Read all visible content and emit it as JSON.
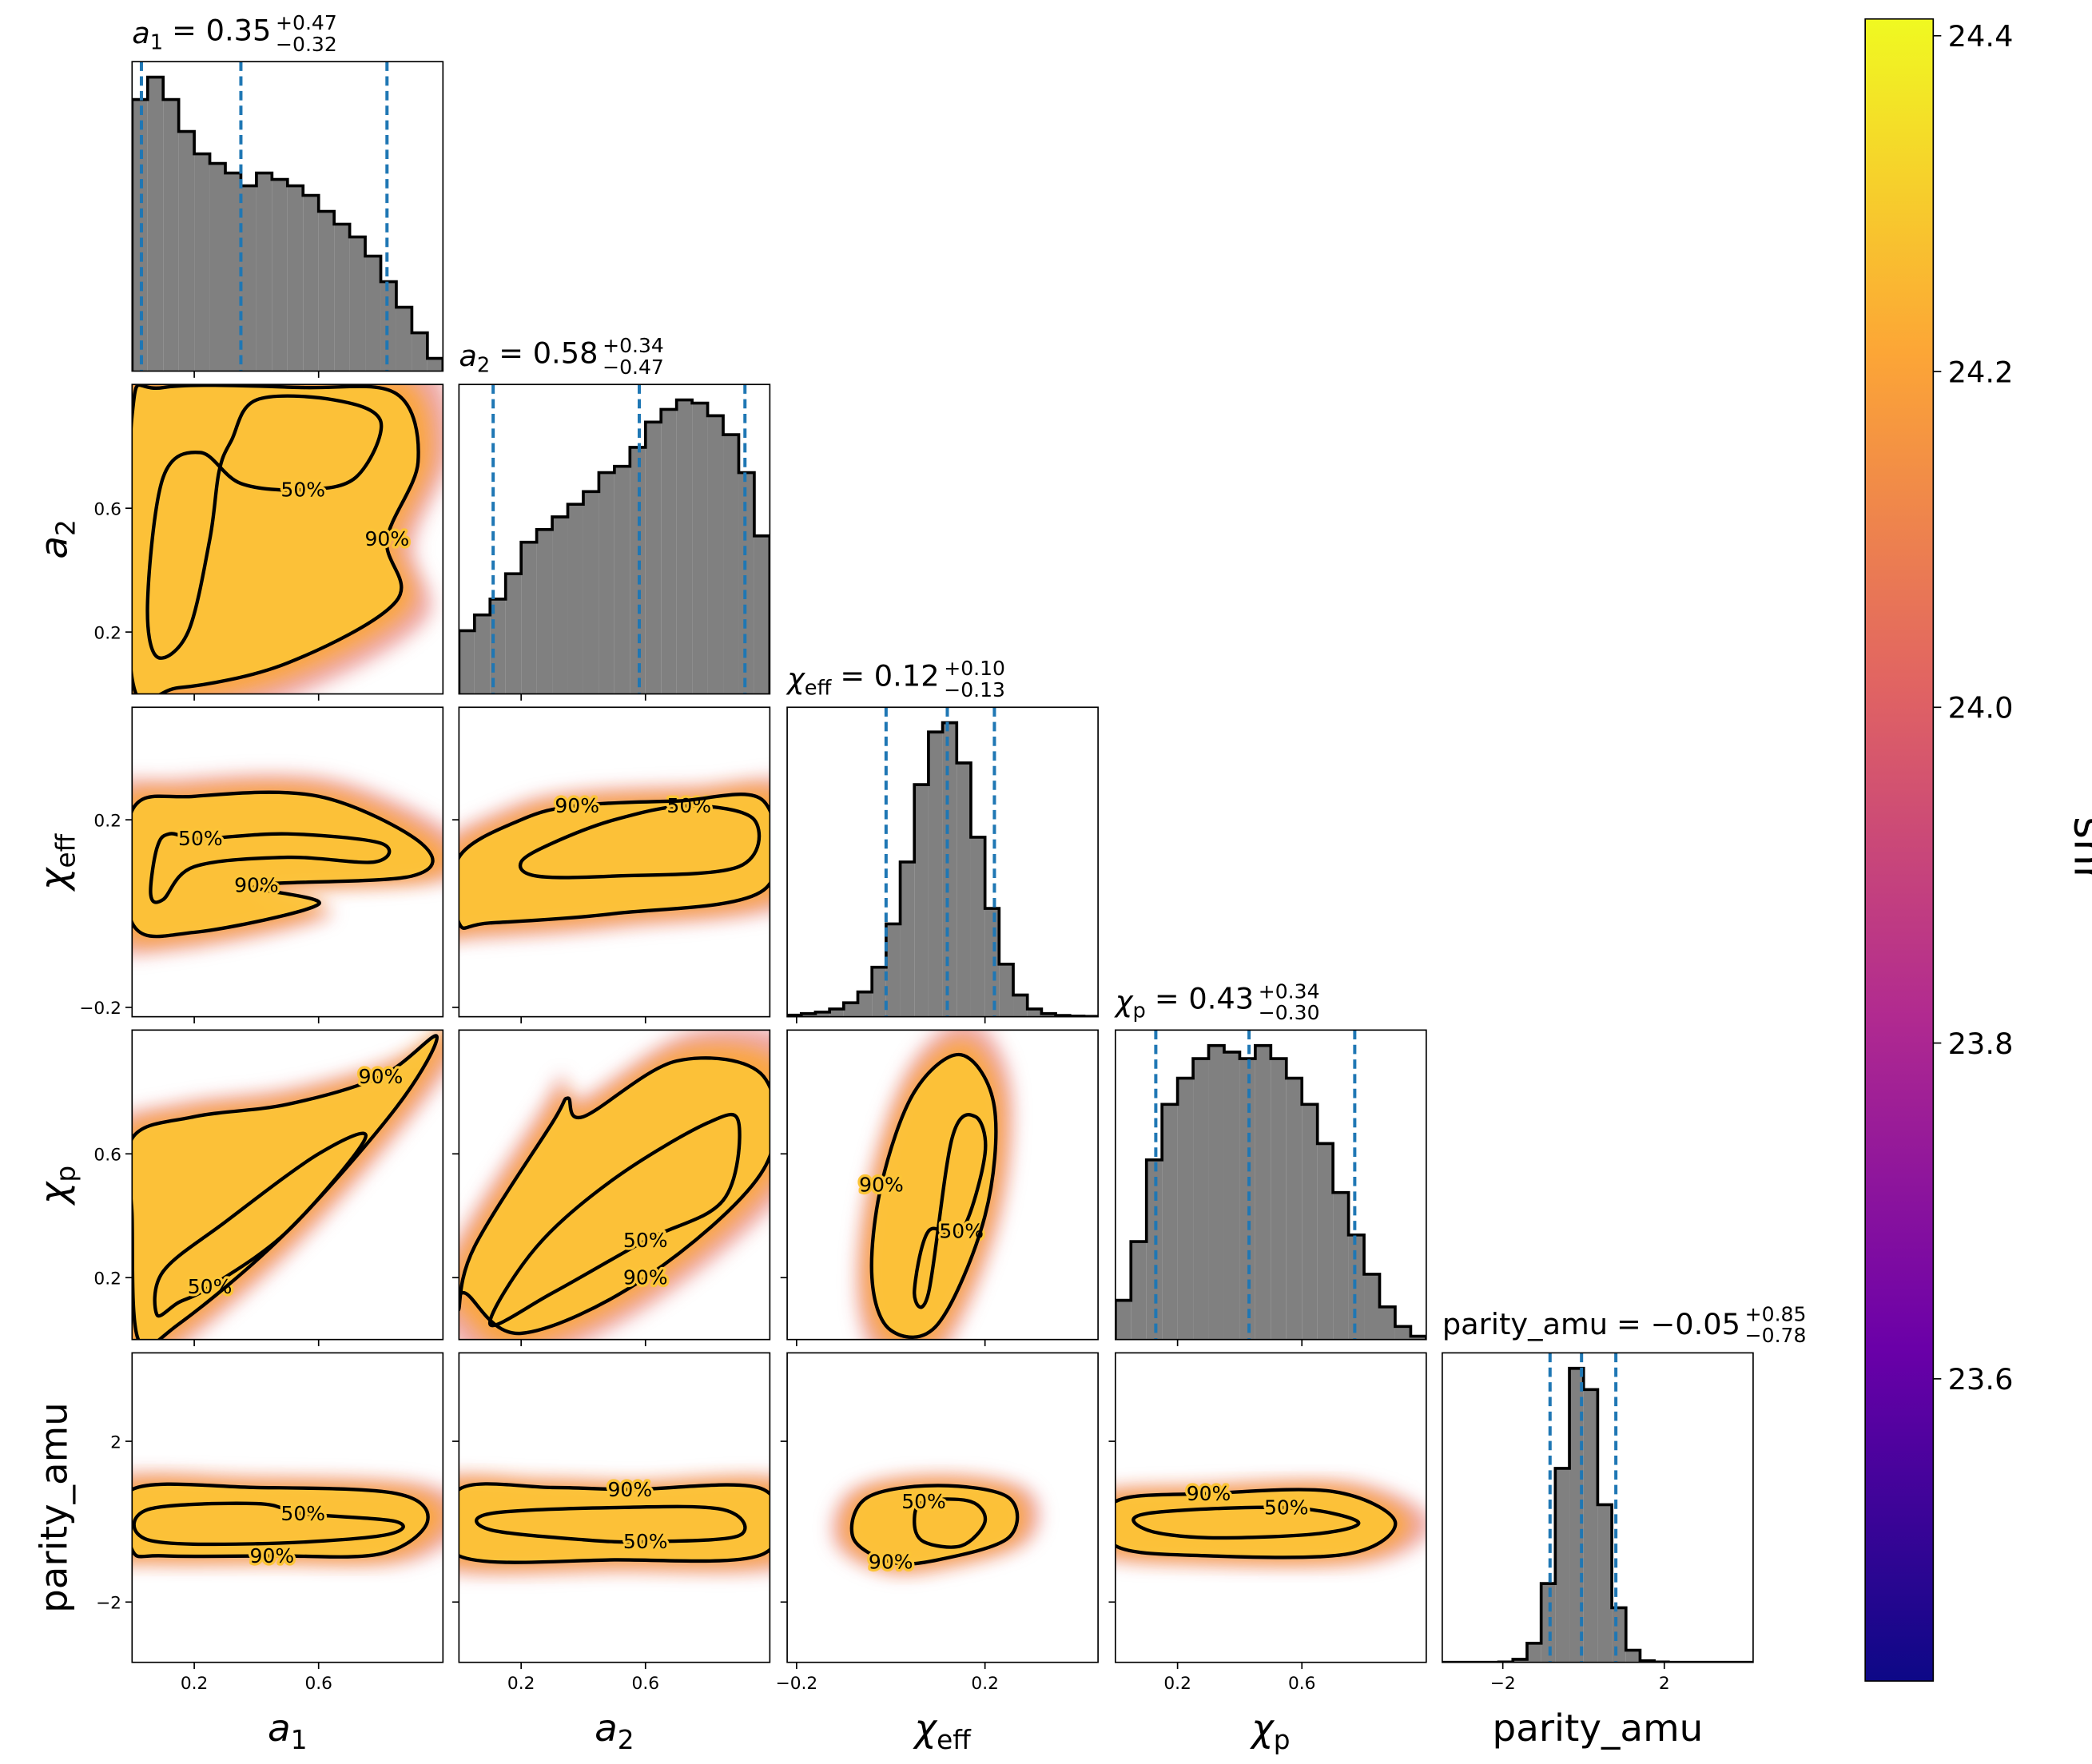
{
  "chart_data": {
    "type": "corner",
    "params": [
      {
        "symbol": "a",
        "sub": "1",
        "lim": [
          0,
          1
        ],
        "ticks": [
          0.2,
          0.6
        ],
        "title": {
          "text": "= 0.35",
          "plus": "+0.47",
          "minus": "−0.32"
        },
        "quantiles": [
          0.03,
          0.35,
          0.82
        ],
        "hist": {
          "bins": [
            0,
            0.05,
            0.1,
            0.15,
            0.2,
            0.25,
            0.3,
            0.35,
            0.4,
            0.45,
            0.5,
            0.55,
            0.6,
            0.65,
            0.7,
            0.75,
            0.8,
            0.85,
            0.9,
            0.95,
            1.0
          ],
          "counts": [
            0.85,
            0.92,
            0.85,
            0.75,
            0.68,
            0.65,
            0.62,
            0.58,
            0.62,
            0.6,
            0.58,
            0.55,
            0.5,
            0.46,
            0.42,
            0.36,
            0.28,
            0.2,
            0.12,
            0.04
          ]
        }
      },
      {
        "symbol": "a",
        "sub": "2",
        "lim": [
          0,
          1
        ],
        "ticks": [
          0.2,
          0.6
        ],
        "title": {
          "text": "= 0.58",
          "plus": "+0.34",
          "minus": "−0.47"
        },
        "quantiles": [
          0.11,
          0.58,
          0.92
        ],
        "hist": {
          "bins": [
            0,
            0.05,
            0.1,
            0.15,
            0.2,
            0.25,
            0.3,
            0.35,
            0.4,
            0.45,
            0.5,
            0.55,
            0.6,
            0.65,
            0.7,
            0.75,
            0.8,
            0.85,
            0.9,
            0.95,
            1.0
          ],
          "counts": [
            0.2,
            0.25,
            0.3,
            0.38,
            0.48,
            0.52,
            0.56,
            0.6,
            0.64,
            0.7,
            0.72,
            0.78,
            0.86,
            0.9,
            0.93,
            0.92,
            0.88,
            0.82,
            0.7,
            0.5
          ]
        }
      },
      {
        "symbol": "χ",
        "sub": "eff",
        "lim": [
          -0.22,
          0.44
        ],
        "ticks": [
          {
            "value": -0.2,
            "label": "−0.2"
          },
          0.2
        ],
        "title": {
          "text": "= 0.12",
          "plus": "+0.10",
          "minus": "−0.13"
        },
        "quantiles": [
          -0.01,
          0.12,
          0.22
        ],
        "hist": {
          "bins": [
            -0.22,
            -0.19,
            -0.16,
            -0.13,
            -0.1,
            -0.07,
            -0.04,
            -0.01,
            0.02,
            0.05,
            0.08,
            0.11,
            0.14,
            0.17,
            0.2,
            0.23,
            0.26,
            0.29,
            0.32,
            0.35,
            0.38,
            0.41,
            0.44
          ],
          "counts": [
            0.005,
            0.01,
            0.015,
            0.025,
            0.045,
            0.08,
            0.16,
            0.3,
            0.5,
            0.75,
            0.92,
            0.95,
            0.82,
            0.58,
            0.35,
            0.17,
            0.07,
            0.025,
            0.01,
            0.004,
            0.002,
            0.001
          ]
        }
      },
      {
        "symbol": "χ",
        "sub": "p",
        "lim": [
          0,
          1
        ],
        "ticks": [
          0.2,
          0.6
        ],
        "title": {
          "text": "= 0.43",
          "plus": "+0.34",
          "minus": "−0.30"
        },
        "quantiles": [
          0.13,
          0.43,
          0.77
        ],
        "hist": {
          "bins": [
            0,
            0.05,
            0.1,
            0.15,
            0.2,
            0.25,
            0.3,
            0.35,
            0.4,
            0.45,
            0.5,
            0.55,
            0.6,
            0.65,
            0.7,
            0.75,
            0.8,
            0.85,
            0.9,
            0.95,
            1.0
          ],
          "counts": [
            0.12,
            0.3,
            0.55,
            0.72,
            0.8,
            0.86,
            0.9,
            0.88,
            0.86,
            0.9,
            0.86,
            0.8,
            0.72,
            0.6,
            0.45,
            0.32,
            0.2,
            0.1,
            0.04,
            0.01
          ]
        }
      },
      {
        "symbol": "parity_amu",
        "lim": [
          -3.5,
          4.2
        ],
        "ticks": [
          {
            "value": -2,
            "label": "−2"
          },
          2
        ],
        "title": {
          "text": "= −0.05",
          "plus": "+0.85",
          "minus": "−0.78"
        },
        "quantiles": [
          -0.83,
          -0.05,
          0.8
        ],
        "hist": {
          "bins": [
            -3.5,
            -3.15,
            -2.8,
            -2.45,
            -2.1,
            -1.75,
            -1.4,
            -1.05,
            -0.7,
            -0.35,
            0,
            0.35,
            0.7,
            1.05,
            1.4,
            1.75,
            2.1,
            2.45,
            2.8,
            3.15,
            3.5,
            3.85,
            4.2
          ],
          "counts": [
            0,
            0,
            0,
            0,
            0.001,
            0.01,
            0.063,
            0.26,
            0.64,
            0.97,
            0.9,
            0.52,
            0.18,
            0.04,
            0.005,
            0.001,
            0,
            0,
            0,
            0,
            0,
            0
          ]
        }
      }
    ],
    "panels": [
      {
        "x": 0,
        "y": 1,
        "contours": [
          {
            "label": "50%",
            "x": [
              0.55,
              0.72,
              0.8,
              0.65,
              0.4,
              0.32,
              0.28,
              0.25,
              0.18,
              0.08,
              0.05,
              0.1,
              0.22,
              0.35
            ],
            "y": [
              0.66,
              0.7,
              0.88,
              0.95,
              0.95,
              0.82,
              0.72,
              0.5,
              0.2,
              0.12,
              0.3,
              0.7,
              0.78,
              0.68
            ]
          },
          {
            "label": "90%",
            "x": [
              0.82,
              0.92,
              0.85,
              0.55,
              0.1,
              0,
              0,
              0.15,
              0.5,
              0.85
            ],
            "y": [
              0.5,
              0.75,
              0.97,
              0.99,
              0.99,
              0.9,
              0.05,
              0.02,
              0.1,
              0.3
            ]
          }
        ]
      },
      {
        "x": 0,
        "y": 2,
        "contours": [
          {
            "label": "50%",
            "x": [
              0.22,
              0.5,
              0.8,
              0.78,
              0.5,
              0.2,
              0.1,
              0.06,
              0.08,
              0.12
            ],
            "y": [
              0.16,
              0.17,
              0.15,
              0.11,
              0.12,
              0.1,
              0.03,
              0.04,
              0.14,
              0.17
            ]
          },
          {
            "label": "90%",
            "x": [
              0.4,
              0.6,
              0.2,
              0,
              0,
              0.2,
              0.6,
              0.93,
              0.9
            ],
            "y": [
              0.06,
              0.02,
              -0.04,
              -0.02,
              0.22,
              0.25,
              0.25,
              0.15,
              0.08
            ]
          }
        ]
      },
      {
        "x": 1,
        "y": 2,
        "contours": [
          {
            "label": "50%",
            "x": [
              0.74,
              0.95,
              0.9,
              0.5,
              0.25,
              0.2,
              0.3,
              0.5
            ],
            "y": [
              0.23,
              0.2,
              0.1,
              0.08,
              0.08,
              0.11,
              0.15,
              0.2
            ]
          },
          {
            "label": "90%",
            "x": [
              0.38,
              0.7,
              0.98,
              0.98,
              0.5,
              0.1,
              0,
              0,
              0.2
            ],
            "y": [
              0.23,
              0.24,
              0.24,
              0.05,
              0,
              -0.02,
              -0.02,
              0.12,
              0.2
            ]
          }
        ]
      },
      {
        "x": 0,
        "y": 3,
        "contours": [
          {
            "label": "50%",
            "x": [
              0.25,
              0.5,
              0.75,
              0.6,
              0.3,
              0.1,
              0.08,
              0.15
            ],
            "y": [
              0.17,
              0.35,
              0.65,
              0.6,
              0.38,
              0.22,
              0.08,
              0.12
            ]
          },
          {
            "label": "90%",
            "x": [
              0.8,
              0.98,
              0.85,
              0.5,
              0.15,
              0.02,
              0,
              0,
              0.2,
              0.5
            ],
            "y": [
              0.85,
              0.98,
              0.75,
              0.35,
              0.05,
              0,
              0.4,
              0.65,
              0.72,
              0.76
            ]
          }
        ]
      },
      {
        "x": 1,
        "y": 3,
        "contours": [
          {
            "label": "50%",
            "x": [
              0.6,
              0.85,
              0.9,
              0.8,
              0.5,
              0.25,
              0.1,
              0.3
            ],
            "y": [
              0.32,
              0.45,
              0.7,
              0.7,
              0.52,
              0.3,
              0.05,
              0.15
            ]
          },
          {
            "label": "90%",
            "x": [
              0.6,
              0.98,
              0.98,
              0.7,
              0.4,
              0.35,
              0.3,
              0.05,
              0,
              0.02,
              0.2
            ],
            "y": [
              0.2,
              0.55,
              0.85,
              0.9,
              0.72,
              0.78,
              0.7,
              0.3,
              0.1,
              0.15,
              0.02
            ]
          }
        ]
      },
      {
        "x": 2,
        "y": 3,
        "contours": [
          {
            "label": "50%",
            "x": [
              0.15,
              0.2,
              0.18,
              0.13,
              0.08,
              0.05,
              0.08
            ],
            "y": [
              0.35,
              0.6,
              0.72,
              0.65,
              0.15,
              0.15,
              0.35
            ]
          },
          {
            "label": "90%",
            "x": [
              -0.02,
              -0.04,
              0,
              0.1,
              0.2,
              0.22,
              0.15,
              0.05
            ],
            "y": [
              0.5,
              0.2,
              0.03,
              0.05,
              0.4,
              0.75,
              0.92,
              0.8
            ]
          }
        ]
      },
      {
        "x": 0,
        "y": 4,
        "contours": [
          {
            "label": "50%",
            "x": [
              0.55,
              0.85,
              0.8,
              0.4,
              0.05,
              0.05,
              0.4
            ],
            "y": [
              0.2,
              0,
              -0.35,
              -0.55,
              -0.45,
              0.3,
              0.45
            ]
          },
          {
            "label": "90%",
            "x": [
              0.45,
              0.8,
              0.95,
              0.85,
              0.4,
              0,
              0,
              0.1
            ],
            "y": [
              -0.85,
              -0.8,
              0,
              0.7,
              0.85,
              0.8,
              -0.7,
              -0.85
            ]
          }
        ]
      },
      {
        "x": 1,
        "y": 4,
        "contours": [
          {
            "label": "50%",
            "x": [
              0.6,
              0.9,
              0.85,
              0.5,
              0.1,
              0.1,
              0.4
            ],
            "y": [
              -0.5,
              -0.35,
              0.3,
              0.35,
              0.2,
              -0.2,
              -0.45
            ]
          },
          {
            "label": "90%",
            "x": [
              0.55,
              0.98,
              0.98,
              0.5,
              0,
              0,
              0.3
            ],
            "y": [
              0.8,
              0.8,
              -0.8,
              -0.95,
              -0.85,
              0.8,
              0.85
            ]
          }
        ]
      },
      {
        "x": 2,
        "y": 4,
        "contours": [
          {
            "label": "50%",
            "x": [
              0.07,
              0.17,
              0.2,
              0.15,
              0.07,
              0.05
            ],
            "y": [
              0.5,
              0.5,
              0,
              -0.6,
              -0.5,
              0
            ]
          },
          {
            "label": "90%",
            "x": [
              0,
              0.1,
              0.25,
              0.25,
              0.1,
              -0.05,
              -0.08
            ],
            "y": [
              -1,
              -0.95,
              -0.4,
              0.6,
              0.9,
              0.6,
              -0.4
            ]
          }
        ]
      },
      {
        "x": 3,
        "y": 4,
        "contours": [
          {
            "label": "50%",
            "x": [
              0.55,
              0.78,
              0.65,
              0.3,
              0.1,
              0.1
            ],
            "y": [
              0.35,
              0,
              -0.3,
              -0.4,
              -0.2,
              0.2
            ]
          },
          {
            "label": "90%",
            "x": [
              0.3,
              0.7,
              0.9,
              0.75,
              0.3,
              0,
              0
            ],
            "y": [
              0.7,
              0.75,
              0,
              -0.8,
              -0.85,
              -0.6,
              0.5
            ]
          }
        ]
      }
    ],
    "hist_color": "#808080",
    "quantile_color": "#1f77b4",
    "colorbar": {
      "label": "snr",
      "lim": [
        23.42,
        24.41
      ],
      "ticks": [
        23.6,
        23.8,
        {
          "value": 24.0,
          "label": "24.0"
        },
        24.2,
        24.4
      ],
      "colormap": [
        "#0d0887",
        "#6a00a8",
        "#b12a90",
        "#e16462",
        "#fca636",
        "#f0f921"
      ]
    }
  }
}
